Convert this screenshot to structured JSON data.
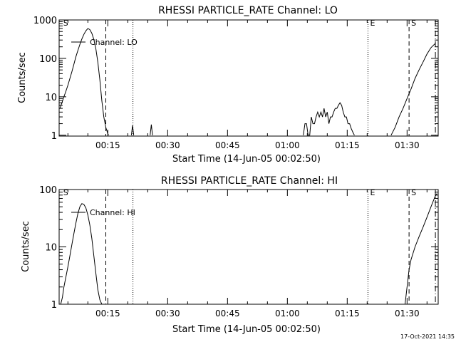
{
  "footer": {
    "timestamp": "17-Oct-2021 14:35"
  },
  "chart_data": [
    {
      "type": "line",
      "title": "RHESSI PARTICLE_RATE Channel: LO",
      "xlabel": "Start Time (14-Jun-05 00:02:50)",
      "ylabel": "Counts/sec",
      "yscale": "log",
      "ylim": [
        0.95,
        1000
      ],
      "xlim": [
        2.8,
        97.8
      ],
      "x_ticks": [
        {
          "value": 15,
          "label": "00:15"
        },
        {
          "value": 30,
          "label": "00:30"
        },
        {
          "value": 45,
          "label": "00:45"
        },
        {
          "value": 60,
          "label": "01:00"
        },
        {
          "value": 75,
          "label": "01:15"
        },
        {
          "value": 90,
          "label": "01:30"
        }
      ],
      "y_ticks": [
        {
          "value": 1,
          "label": "1"
        },
        {
          "value": 10,
          "label": "10"
        },
        {
          "value": 100,
          "label": "100"
        },
        {
          "value": 1000,
          "label": "1000"
        }
      ],
      "legend": {
        "label": "Channel: LO",
        "placement": "top-left"
      },
      "markers": [
        {
          "x": 3.3,
          "label": "S",
          "style": "none"
        },
        {
          "x": 14.5,
          "label": "",
          "style": "dashed"
        },
        {
          "x": 21.3,
          "label": "",
          "style": "dotted"
        },
        {
          "x": 80.2,
          "label": "E",
          "style": "dotted"
        },
        {
          "x": 90.5,
          "label": "S",
          "style": "dashed"
        },
        {
          "x": 97.1,
          "label": "",
          "style": "dashdot"
        }
      ],
      "series": [
        {
          "name": "Channel: LO",
          "segments": [
            {
              "x": [
                3.0,
                3.5,
                4.0,
                4.5,
                5.0,
                5.5,
                6.0,
                6.5,
                7.0,
                7.5,
                8.0,
                8.5,
                9.0,
                9.5,
                10.0,
                10.5,
                11.0,
                11.5,
                12.0,
                12.5,
                13.0,
                13.5,
                14.0,
                14.5,
                15.0,
                15.2
              ],
              "y": [
                5,
                7,
                10,
                14,
                20,
                30,
                45,
                70,
                110,
                160,
                230,
                320,
                420,
                520,
                600,
                560,
                450,
                310,
                180,
                80,
                28,
                8,
                3,
                1.6,
                1.1,
                1
              ]
            },
            {
              "x": [
                20.9,
                21.2,
                21.5
              ],
              "y": [
                1,
                1.8,
                1
              ]
            },
            {
              "x": [
                25.6,
                25.9,
                26.2
              ],
              "y": [
                1,
                1.9,
                1
              ]
            },
            {
              "x": [
                64.0,
                64.4,
                64.8,
                65.2,
                65.6,
                66.0,
                66.4,
                66.8,
                67.2,
                67.6,
                68.0,
                68.4,
                68.8,
                69.2,
                69.6,
                70.0,
                70.4,
                70.8,
                71.2,
                71.6,
                72.0,
                72.4,
                72.8,
                73.2,
                73.6,
                74.0,
                74.4,
                74.8,
                75.2,
                75.6,
                76.0,
                76.4,
                76.8
              ],
              "y": [
                1,
                2,
                2,
                1,
                1,
                3,
                2,
                2,
                3,
                4,
                3,
                4,
                3,
                5,
                3,
                4,
                2,
                3,
                3,
                4,
                5,
                5,
                6,
                7,
                6,
                4,
                3,
                3,
                2,
                2,
                1.5,
                1.2,
                1
              ]
            },
            {
              "x": [
                86.0,
                87.0,
                88.0,
                89.0,
                90.0,
                91.0,
                92.0,
                93.0,
                94.0,
                95.0,
                96.0,
                97.0
              ],
              "y": [
                1,
                1.6,
                3,
                5,
                9,
                16,
                30,
                50,
                80,
                130,
                190,
                240
              ]
            }
          ]
        }
      ]
    },
    {
      "type": "line",
      "title": "RHESSI PARTICLE_RATE Channel: HI",
      "xlabel": "Start Time (14-Jun-05 00:02:50)",
      "ylabel": "Counts/sec",
      "yscale": "log",
      "ylim": [
        1,
        100
      ],
      "xlim": [
        2.8,
        97.8
      ],
      "x_ticks": [
        {
          "value": 15,
          "label": "00:15"
        },
        {
          "value": 30,
          "label": "00:30"
        },
        {
          "value": 45,
          "label": "00:45"
        },
        {
          "value": 60,
          "label": "01:00"
        },
        {
          "value": 75,
          "label": "01:15"
        },
        {
          "value": 90,
          "label": "01:30"
        }
      ],
      "y_ticks": [
        {
          "value": 1,
          "label": "1"
        },
        {
          "value": 10,
          "label": "10"
        },
        {
          "value": 100,
          "label": "100"
        }
      ],
      "legend": {
        "label": "Channel: HI",
        "placement": "top-left"
      },
      "markers": [
        {
          "x": 3.3,
          "label": "S",
          "style": "none"
        },
        {
          "x": 14.5,
          "label": "",
          "style": "dashed"
        },
        {
          "x": 21.3,
          "label": "",
          "style": "dotted"
        },
        {
          "x": 80.2,
          "label": "E",
          "style": "dotted"
        },
        {
          "x": 90.5,
          "label": "S",
          "style": "dashed"
        },
        {
          "x": 97.1,
          "label": "",
          "style": "dashdot"
        }
      ],
      "series": [
        {
          "name": "Channel: HI",
          "segments": [
            {
              "x": [
                3.2,
                3.6,
                4.0,
                4.5,
                5.0,
                5.5,
                6.0,
                6.5,
                7.0,
                7.5,
                8.0,
                8.5,
                9.0,
                9.5,
                10.0,
                10.5,
                11.0,
                11.5,
                12.0,
                12.5,
                13.0,
                13.5
              ],
              "y": [
                1,
                1.3,
                2,
                3,
                4.5,
                7,
                11,
                17,
                26,
                38,
                50,
                57,
                55,
                48,
                36,
                24,
                14,
                7,
                3.5,
                1.8,
                1.2,
                1
              ]
            },
            {
              "x": [
                89.5,
                90.0,
                90.5,
                91.0,
                92.0,
                93.0,
                94.0,
                95.0,
                96.0,
                97.0,
                97.5
              ],
              "y": [
                1,
                2,
                4,
                6,
                10,
                15,
                22,
                33,
                50,
                75,
                85
              ]
            }
          ]
        }
      ]
    }
  ]
}
